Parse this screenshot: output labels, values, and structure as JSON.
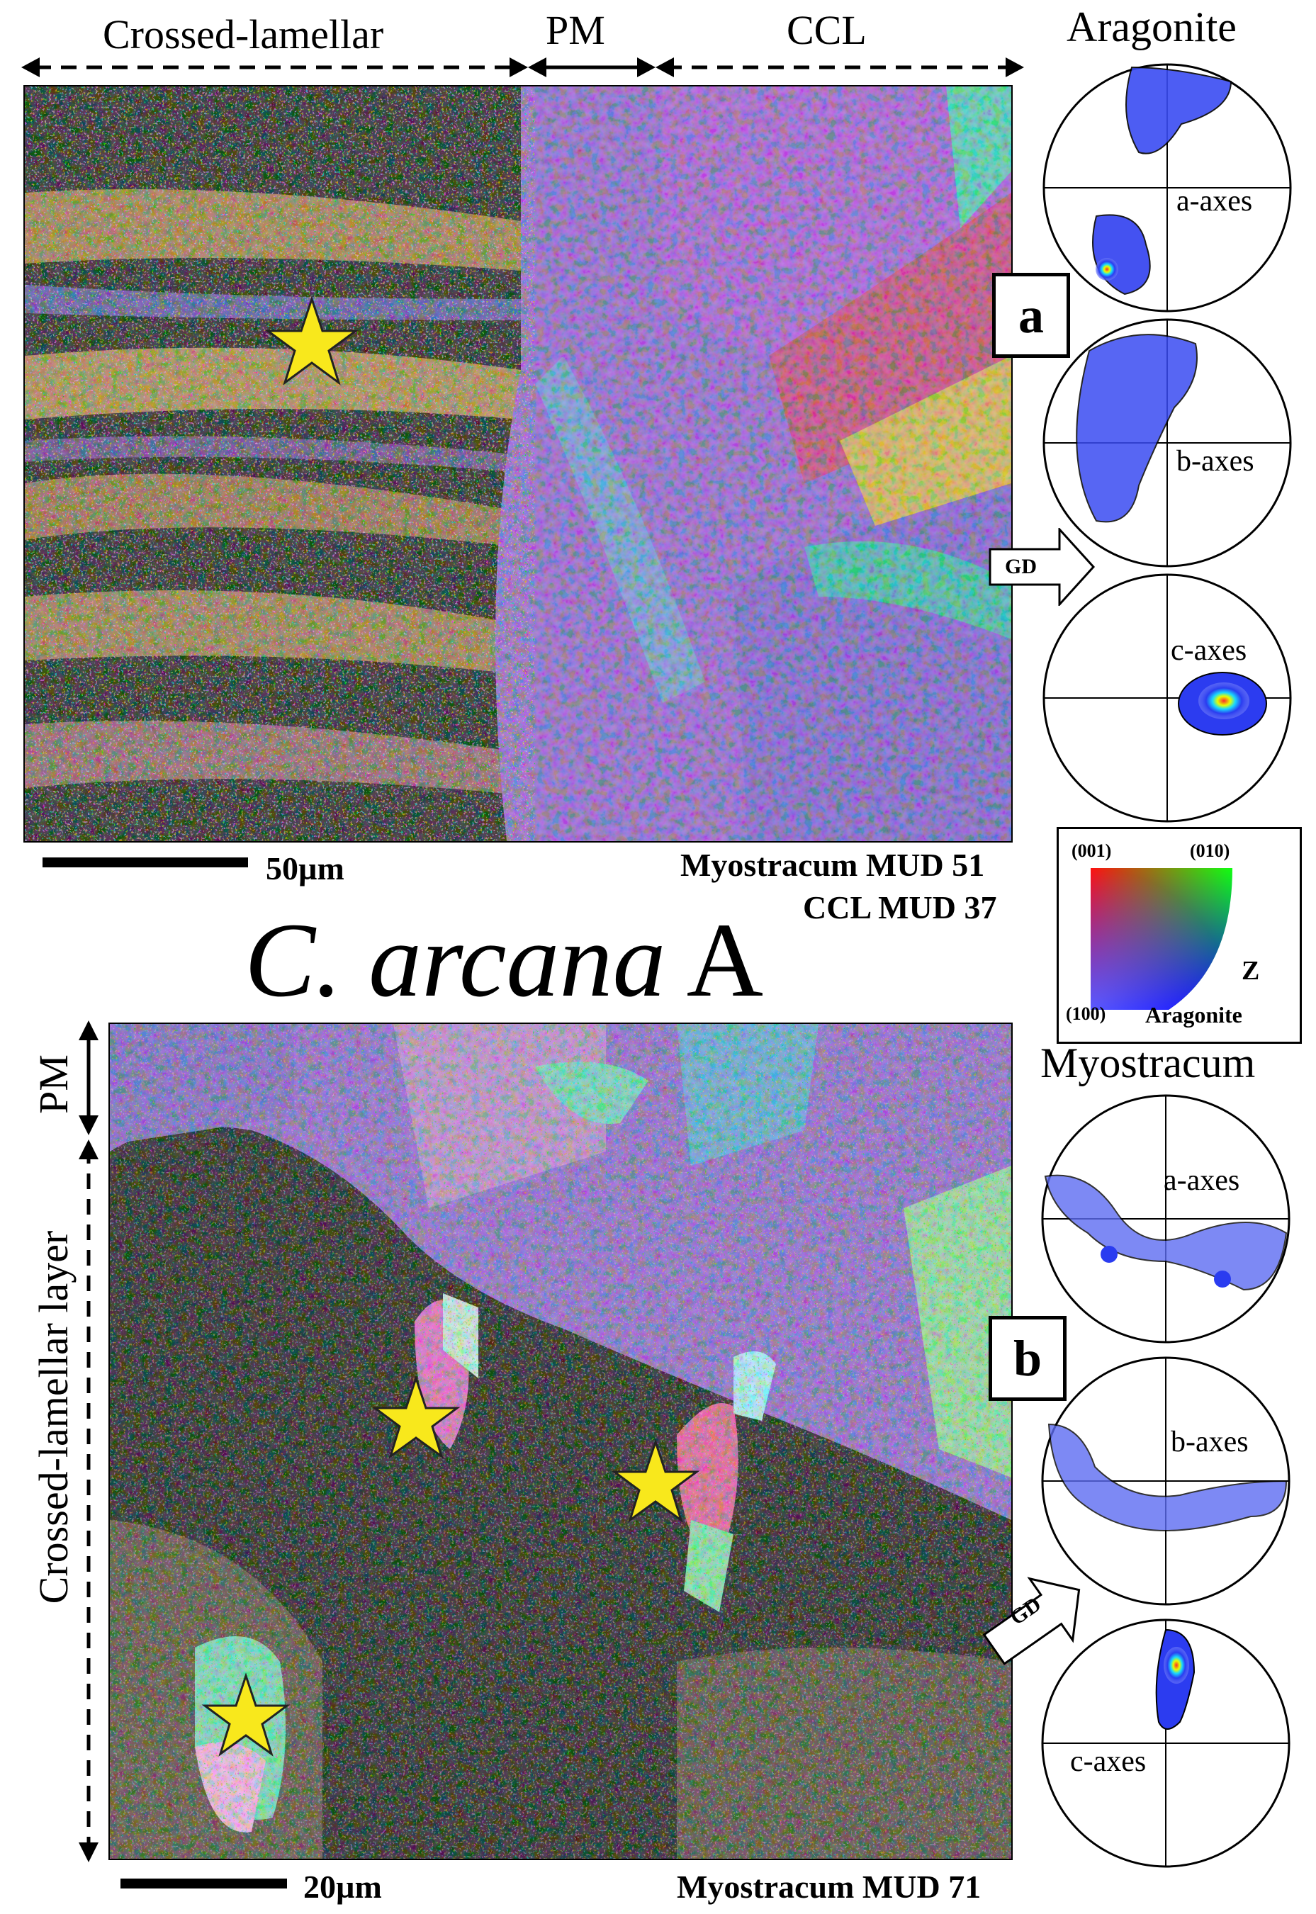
{
  "panel_a": {
    "header_labels": {
      "crossed_lamellar": "Crossed-lamellar",
      "pm": "PM",
      "ccl": "CCL"
    },
    "box_label": "a",
    "scale_label": "50µm",
    "mud_line1": "Myostracum MUD 51",
    "mud_line2": "CCL MUD 37",
    "pole_title": "Aragonite",
    "pole_labels": {
      "a": "a-axes",
      "b": "b-axes",
      "c": "c-axes"
    },
    "gd_label": "GD"
  },
  "title": {
    "italic": "C. arcana",
    "suffix": "A"
  },
  "legend": {
    "corner_001": "(001)",
    "corner_010": "(010)",
    "corner_100": "(100)",
    "axis": "Z",
    "mineral": "Aragonite"
  },
  "panel_b": {
    "vertical_labels": {
      "pm": "PM",
      "crossed_lamellar_layer": "Crossed-lamellar layer"
    },
    "box_label": "b",
    "scale_label": "20µm",
    "mud_line": "Myostracum MUD 71",
    "pole_title": "Myostracum",
    "pole_labels": {
      "a": "a-axes",
      "b": "b-axes",
      "c": "c-axes"
    },
    "gd_label": "GD"
  },
  "colors": {
    "star": "#f8e81c",
    "pole_blue": "#2a3cf0",
    "map_dark": "#141414"
  }
}
